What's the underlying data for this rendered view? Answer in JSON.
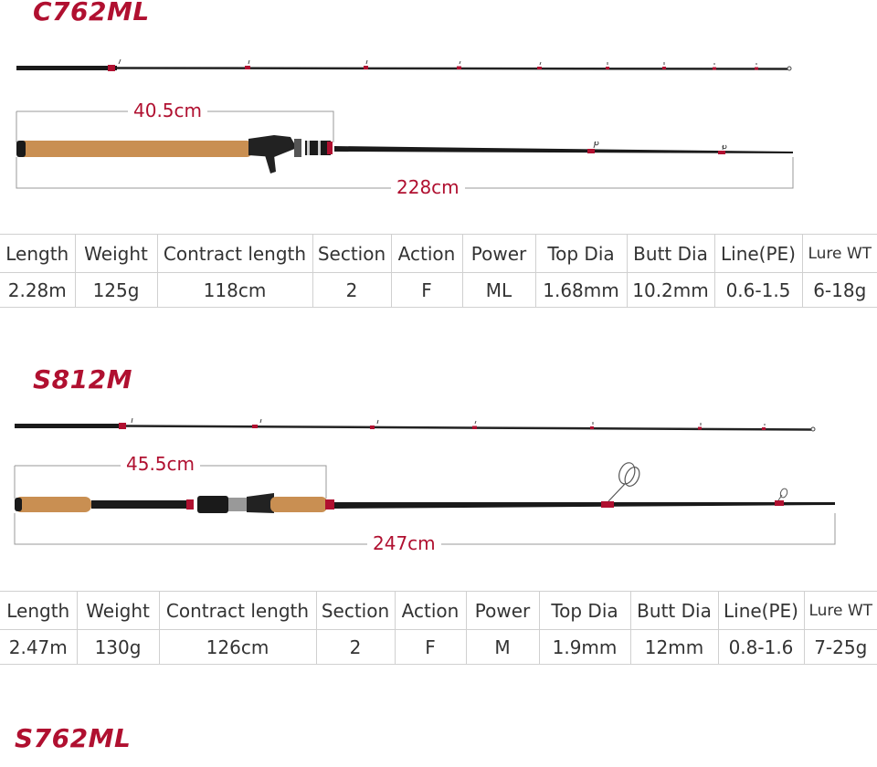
{
  "models": [
    {
      "name": "C762ML",
      "handle_length": "40.5cm",
      "total_length": "228cm",
      "headers": [
        "Length",
        "Weight",
        "Contract length",
        "Section",
        "Action",
        "Power",
        "Top Dia",
        "Butt Dia",
        "Line(PE)",
        "Lure WT"
      ],
      "values": [
        "2.28m",
        "125g",
        "118cm",
        "2",
        "F",
        "ML",
        "1.68mm",
        "10.2mm",
        "0.6-1.5",
        "6-18g"
      ]
    },
    {
      "name": "S812M",
      "handle_length": "45.5cm",
      "total_length": "247cm",
      "headers": [
        "Length",
        "Weight",
        "Contract length",
        "Section",
        "Action",
        "Power",
        "Top Dia",
        "Butt Dia",
        "Line(PE)",
        "Lure WT"
      ],
      "values": [
        "2.47m",
        "130g",
        "126cm",
        "2",
        "F",
        "M",
        "1.9mm",
        "12mm",
        "0.8-1.6",
        "7-25g"
      ]
    },
    {
      "name": "S762ML"
    }
  ],
  "colors": {
    "accent": "#b01030",
    "cork": "#c98f52",
    "blank": "#1a1a1a"
  }
}
